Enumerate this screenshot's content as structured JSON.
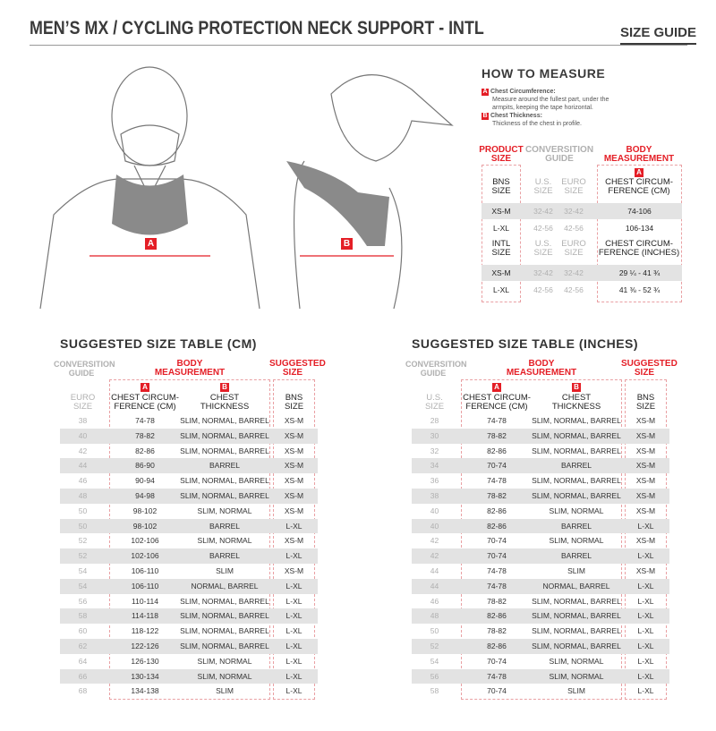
{
  "header": {
    "title": "MEN’S MX / CYCLING PROTECTION NECK SUPPORT - INTL",
    "size_guide": "SIZE GUIDE"
  },
  "illustration": {
    "marker_a": "A",
    "marker_b": "B"
  },
  "how_to_measure": {
    "title": "HOW TO MEASURE",
    "items": [
      {
        "badge": "A",
        "label": "Chest Circumference:",
        "desc1": "Measure around the fullest part, under the",
        "desc2": "armpits, keeping the tape horizontal."
      },
      {
        "badge": "B",
        "label": "Chest Thickness:",
        "desc1": "Thickness of the chest in profile."
      }
    ]
  },
  "product_table": {
    "product_size": [
      "PRODUCT",
      "SIZE"
    ],
    "conversion": [
      "CONVERSITION",
      "GUIDE"
    ],
    "body": [
      "BODY",
      "MEASUREMENT"
    ],
    "badge": "A",
    "sections": [
      {
        "size_head": [
          "BNS",
          "SIZE"
        ],
        "us_head": [
          "U.S.",
          "SIZE"
        ],
        "euro_head": [
          "EURO",
          "SIZE"
        ],
        "meas_head": [
          "CHEST CIRCUM-",
          "FERENCE (CM)"
        ],
        "rows": [
          [
            "XS-M",
            "32-42",
            "32-42",
            "74-106"
          ],
          [
            "L-XL",
            "42-56",
            "42-56",
            "106-134"
          ]
        ]
      },
      {
        "size_head": [
          "INTL",
          "SIZE"
        ],
        "us_head": [
          "U.S.",
          "SIZE"
        ],
        "euro_head": [
          "EURO",
          "SIZE"
        ],
        "meas_head": [
          "CHEST CIRCUM-",
          "FERENCE (INCHES)"
        ],
        "rows": [
          [
            "XS-M",
            "32-42",
            "32-42",
            "29 ¼ - 41 ¾"
          ],
          [
            "L-XL",
            "42-56",
            "42-56",
            "41 ⅜ - 52 ¾"
          ]
        ]
      }
    ]
  },
  "tables": [
    {
      "title": "SUGGESTED SIZE TABLE (CM)",
      "conversion": [
        "CONVERSITION",
        "GUIDE"
      ],
      "body": [
        "BODY",
        "MEASUREMENT"
      ],
      "suggested": [
        "SUGGESTED",
        "SIZE"
      ],
      "col_heads": [
        [
          "EURO",
          "SIZE"
        ],
        [
          "CHEST CIRCUM-",
          "FERENCE (CM)"
        ],
        [
          "CHEST",
          "THICKNESS"
        ],
        [
          "BNS",
          "SIZE"
        ]
      ],
      "badges": [
        "A",
        "B"
      ],
      "rows": [
        [
          "38",
          "74-78",
          "SLIM, NORMAL, BARREL",
          "XS-M"
        ],
        [
          "40",
          "78-82",
          "SLIM, NORMAL, BARREL",
          "XS-M"
        ],
        [
          "42",
          "82-86",
          "SLIM, NORMAL, BARREL",
          "XS-M"
        ],
        [
          "44",
          "86-90",
          "BARREL",
          "XS-M"
        ],
        [
          "46",
          "90-94",
          "SLIM, NORMAL, BARREL",
          "XS-M"
        ],
        [
          "48",
          "94-98",
          "SLIM, NORMAL, BARREL",
          "XS-M"
        ],
        [
          "50",
          "98-102",
          "SLIM, NORMAL",
          "XS-M"
        ],
        [
          "50",
          "98-102",
          "BARREL",
          "L-XL"
        ],
        [
          "52",
          "102-106",
          "SLIM, NORMAL",
          "XS-M"
        ],
        [
          "52",
          "102-106",
          "BARREL",
          "L-XL"
        ],
        [
          "54",
          "106-110",
          "SLIM",
          "XS-M"
        ],
        [
          "54",
          "106-110",
          "NORMAL, BARREL",
          "L-XL"
        ],
        [
          "56",
          "110-114",
          "SLIM, NORMAL, BARREL",
          "L-XL"
        ],
        [
          "58",
          "114-118",
          "SLIM, NORMAL, BARREL",
          "L-XL"
        ],
        [
          "60",
          "118-122",
          "SLIM, NORMAL, BARREL",
          "L-XL"
        ],
        [
          "62",
          "122-126",
          "SLIM, NORMAL, BARREL",
          "L-XL"
        ],
        [
          "64",
          "126-130",
          "SLIM, NORMAL",
          "L-XL"
        ],
        [
          "66",
          "130-134",
          "SLIM, NORMAL",
          "L-XL"
        ],
        [
          "68",
          "134-138",
          "SLIM",
          "L-XL"
        ]
      ]
    },
    {
      "title": "SUGGESTED SIZE TABLE (INCHES)",
      "conversion": [
        "CONVERSITION",
        "GUIDE"
      ],
      "body": [
        "BODY",
        "MEASUREMENT"
      ],
      "suggested": [
        "SUGGESTED",
        "SIZE"
      ],
      "col_heads": [
        [
          "U.S.",
          "SIZE"
        ],
        [
          "CHEST CIRCUM-",
          "FERENCE (CM)"
        ],
        [
          "CHEST",
          "THICKNESS"
        ],
        [
          "BNS",
          "SIZE"
        ]
      ],
      "badges": [
        "A",
        "B"
      ],
      "rows": [
        [
          "28",
          "74-78",
          "SLIM, NORMAL, BARREL",
          "XS-M"
        ],
        [
          "30",
          "78-82",
          "SLIM, NORMAL, BARREL",
          "XS-M"
        ],
        [
          "32",
          "82-86",
          "SLIM, NORMAL, BARREL",
          "XS-M"
        ],
        [
          "34",
          "70-74",
          "BARREL",
          "XS-M"
        ],
        [
          "36",
          "74-78",
          "SLIM, NORMAL, BARREL",
          "XS-M"
        ],
        [
          "38",
          "78-82",
          "SLIM, NORMAL, BARREL",
          "XS-M"
        ],
        [
          "40",
          "82-86",
          "SLIM, NORMAL",
          "XS-M"
        ],
        [
          "40",
          "82-86",
          "BARREL",
          "L-XL"
        ],
        [
          "42",
          "70-74",
          "SLIM, NORMAL",
          "XS-M"
        ],
        [
          "42",
          "70-74",
          "BARREL",
          "L-XL"
        ],
        [
          "44",
          "74-78",
          "SLIM",
          "XS-M"
        ],
        [
          "44",
          "74-78",
          "NORMAL, BARREL",
          "L-XL"
        ],
        [
          "46",
          "78-82",
          "SLIM, NORMAL, BARREL",
          "L-XL"
        ],
        [
          "48",
          "82-86",
          "SLIM, NORMAL, BARREL",
          "L-XL"
        ],
        [
          "50",
          "78-82",
          "SLIM, NORMAL, BARREL",
          "L-XL"
        ],
        [
          "52",
          "82-86",
          "SLIM, NORMAL, BARREL",
          "L-XL"
        ],
        [
          "54",
          "70-74",
          "SLIM, NORMAL",
          "L-XL"
        ],
        [
          "56",
          "74-78",
          "SLIM, NORMAL",
          "L-XL"
        ],
        [
          "58",
          "70-74",
          "SLIM",
          "L-XL"
        ]
      ]
    }
  ],
  "colors": {
    "accent": "#e41e26",
    "stripe": "#e3e3e3",
    "muted": "#b0b0b0"
  }
}
